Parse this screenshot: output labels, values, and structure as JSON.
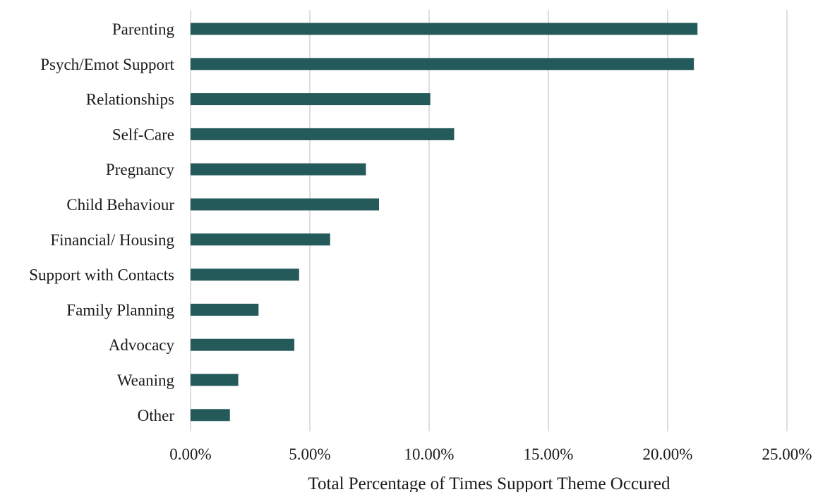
{
  "chart_data": {
    "type": "bar",
    "orientation": "horizontal",
    "categories": [
      "Parenting",
      "Psych/Emot Support",
      "Relationships",
      "Self-Care",
      "Pregnancy",
      "Child Behaviour",
      "Financial/ Housing",
      "Support with Contacts",
      "Family Planning",
      "Advocacy",
      "Weaning",
      "Other"
    ],
    "values": [
      21.25,
      21.1,
      10.05,
      11.05,
      7.35,
      7.9,
      5.85,
      4.55,
      2.85,
      4.35,
      2.0,
      1.65
    ],
    "xlabel": "Total Percentage of Times Support Theme Occured",
    "ylabel": "",
    "title": "",
    "xlim": [
      0,
      25
    ],
    "xticks": [
      0,
      5,
      10,
      15,
      20,
      25
    ],
    "xtick_labels": [
      "0.00%",
      "5.00%",
      "10.00%",
      "15.00%",
      "20.00%",
      "25.00%"
    ],
    "grid": "vertical",
    "legend": "none",
    "bar_color": "#245a5a"
  }
}
